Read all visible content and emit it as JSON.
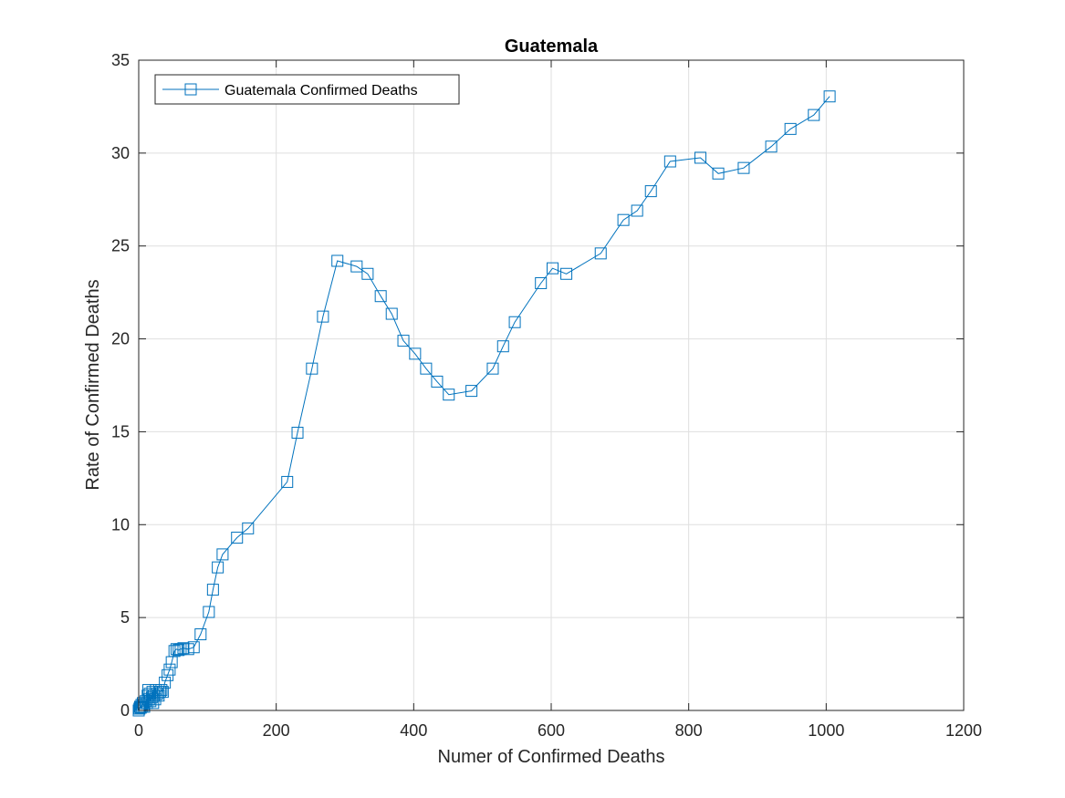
{
  "chart_data": {
    "type": "line",
    "title": "Guatemala",
    "xlabel": "Numer of Confirmed Deaths",
    "ylabel": "Rate of Confirmed Deaths",
    "xlim": [
      0,
      1200
    ],
    "ylim": [
      0,
      35
    ],
    "xticks": [
      "0",
      "200",
      "400",
      "600",
      "800",
      "1000",
      "1200"
    ],
    "yticks": [
      "0",
      "5",
      "10",
      "15",
      "20",
      "25",
      "30",
      "35"
    ],
    "grid": true,
    "legend_position": "top-left",
    "series": [
      {
        "name": "Guatemala Confirmed Deaths",
        "color": "#0072bd",
        "marker": "square",
        "x": [
          0,
          1,
          2,
          3,
          4,
          5,
          6,
          7,
          8,
          10,
          12,
          13,
          14,
          15,
          16,
          17,
          19,
          20,
          21,
          22,
          24,
          25,
          27,
          29,
          31,
          33,
          35,
          38,
          42,
          45,
          48,
          52,
          55,
          58,
          61,
          65,
          72,
          80,
          90,
          102,
          108,
          115,
          122,
          143,
          159,
          216,
          231,
          252,
          268,
          289,
          317,
          333,
          352,
          368,
          385,
          402,
          418,
          434,
          451,
          484,
          515,
          530,
          547,
          585,
          602,
          622,
          672,
          705,
          725,
          745,
          773,
          817,
          843,
          880,
          920,
          948,
          982,
          1005
        ],
        "y": [
          0,
          0.1,
          0.2,
          0.15,
          0.3,
          0.2,
          0.4,
          0.3,
          0.2,
          0.5,
          0.4,
          0.8,
          1.1,
          0.6,
          0.9,
          0.5,
          0.7,
          1.0,
          0.4,
          0.8,
          0.6,
          1.1,
          0.9,
          0.8,
          1.0,
          1.1,
          1.0,
          1.5,
          1.9,
          2.2,
          2.6,
          3.2,
          3.3,
          3.25,
          3.3,
          3.35,
          3.3,
          3.4,
          4.1,
          5.3,
          6.5,
          7.7,
          8.4,
          9.3,
          9.8,
          12.3,
          14.95,
          18.4,
          21.2,
          24.2,
          23.9,
          23.5,
          22.3,
          21.35,
          19.9,
          19.2,
          18.4,
          17.7,
          17.0,
          17.2,
          18.4,
          19.6,
          20.9,
          23.0,
          23.8,
          23.5,
          24.6,
          26.4,
          26.9,
          27.95,
          29.55,
          29.75,
          28.9,
          29.2,
          30.35,
          31.3,
          32.05,
          33.05
        ]
      }
    ]
  }
}
